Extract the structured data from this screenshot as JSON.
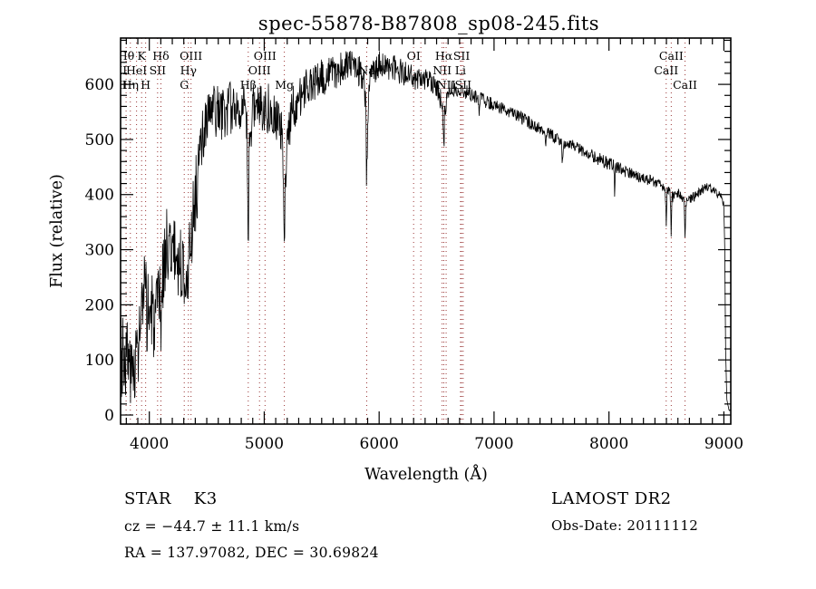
{
  "title": "spec-55878-B87808_sp08-245.fits",
  "footer": {
    "class_label": "STAR    K3",
    "cz_label": "cz = −44.7 ± 11.1 km/s",
    "radec_label": "RA = 137.97082, DEC =  30.69824",
    "survey": "LAMOST DR2",
    "obs_date": "Obs-Date: 20111112"
  },
  "chart_data": {
    "type": "line",
    "title": "spec-55878-B87808_sp08-245.fits",
    "xlabel": "Wavelength (Å)",
    "ylabel": "Flux (relative)",
    "xlim": [
      3750,
      9060
    ],
    "ylim": [
      0,
      600
    ],
    "x_ticks": [
      4000,
      5000,
      6000,
      7000,
      8000,
      9000
    ],
    "x_minor_step": 100,
    "y_ticks": [
      0,
      100,
      200,
      300,
      400,
      500,
      600
    ],
    "y_minor_step": 20,
    "grid": false,
    "legend": "none",
    "line_color": "#000000",
    "marker_color": "#993333",
    "spectral_lines": [
      {
        "label": "OII",
        "wavelength": 3727,
        "row": 2
      },
      {
        "label": "OII",
        "wavelength": 3729,
        "row": 3
      },
      {
        "label": "Hθ",
        "wavelength": 3798,
        "row": 1
      },
      {
        "label": "Hη",
        "wavelength": 3835,
        "row": 3
      },
      {
        "label": "HeI",
        "wavelength": 3889,
        "row": 2
      },
      {
        "label": "K",
        "wavelength": 3933,
        "row": 1
      },
      {
        "label": "H",
        "wavelength": 3968,
        "row": 3
      },
      {
        "label": "SII",
        "wavelength": 4072,
        "row": 2
      },
      {
        "label": "Hδ",
        "wavelength": 4101,
        "row": 1
      },
      {
        "label": "G",
        "wavelength": 4304,
        "row": 3
      },
      {
        "label": "Hγ",
        "wavelength": 4340,
        "row": 2
      },
      {
        "label": "OIII",
        "wavelength": 4363,
        "row": 1
      },
      {
        "label": "Hβ",
        "wavelength": 4861,
        "row": 3
      },
      {
        "label": "OIII",
        "wavelength": 4959,
        "row": 2
      },
      {
        "label": "OIII",
        "wavelength": 5007,
        "row": 1
      },
      {
        "label": "Mg",
        "wavelength": 5175,
        "row": 3
      },
      {
        "label": "Na",
        "wavelength": 5892,
        "row": 2
      },
      {
        "label": "OI",
        "wavelength": 6300,
        "row": 1
      },
      {
        "label": "",
        "wavelength": 6363,
        "row": 0
      },
      {
        "label": "NII",
        "wavelength": 6548,
        "row": 2
      },
      {
        "label": "Hα",
        "wavelength": 6563,
        "row": 1
      },
      {
        "label": "NII",
        "wavelength": 6583,
        "row": 3
      },
      {
        "label": "Li",
        "wavelength": 6708,
        "row": 2
      },
      {
        "label": "SII",
        "wavelength": 6717,
        "row": 1
      },
      {
        "label": "SII",
        "wavelength": 6731,
        "row": 3
      },
      {
        "label": "CaII",
        "wavelength": 8498,
        "row": 2
      },
      {
        "label": "CaII",
        "wavelength": 8542,
        "row": 1
      },
      {
        "label": "CaII",
        "wavelength": 8662,
        "row": 3
      }
    ],
    "envelope": [
      [
        3755,
        130,
        105
      ],
      [
        3800,
        110,
        90
      ],
      [
        3850,
        75,
        55
      ],
      [
        3900,
        120,
        75
      ],
      [
        3950,
        200,
        95
      ],
      [
        4000,
        190,
        85
      ],
      [
        4060,
        165,
        75
      ],
      [
        4100,
        230,
        80
      ],
      [
        4150,
        310,
        65
      ],
      [
        4200,
        305,
        60
      ],
      [
        4260,
        275,
        65
      ],
      [
        4310,
        260,
        70
      ],
      [
        4360,
        320,
        65
      ],
      [
        4420,
        430,
        70
      ],
      [
        4480,
        520,
        60
      ],
      [
        4550,
        555,
        50
      ],
      [
        4620,
        545,
        55
      ],
      [
        4700,
        555,
        50
      ],
      [
        4780,
        565,
        45
      ],
      [
        4830,
        545,
        50
      ],
      [
        4861,
        470,
        60
      ],
      [
        4900,
        560,
        45
      ],
      [
        4960,
        565,
        45
      ],
      [
        5010,
        560,
        50
      ],
      [
        5080,
        555,
        45
      ],
      [
        5140,
        520,
        50
      ],
      [
        5175,
        455,
        55
      ],
      [
        5230,
        545,
        45
      ],
      [
        5300,
        575,
        40
      ],
      [
        5400,
        600,
        38
      ],
      [
        5500,
        610,
        36
      ],
      [
        5600,
        622,
        32
      ],
      [
        5700,
        630,
        30
      ],
      [
        5800,
        638,
        28
      ],
      [
        5870,
        600,
        35
      ],
      [
        5892,
        540,
        40
      ],
      [
        5930,
        625,
        28
      ],
      [
        6000,
        635,
        26
      ],
      [
        6100,
        632,
        24
      ],
      [
        6200,
        622,
        24
      ],
      [
        6300,
        612,
        22
      ],
      [
        6400,
        608,
        20
      ],
      [
        6480,
        600,
        20
      ],
      [
        6563,
        555,
        25
      ],
      [
        6620,
        595,
        16
      ],
      [
        6700,
        590,
        14
      ],
      [
        6800,
        582,
        14
      ],
      [
        6900,
        572,
        13
      ],
      [
        7000,
        562,
        13
      ],
      [
        7100,
        552,
        12
      ],
      [
        7200,
        543,
        12
      ],
      [
        7300,
        532,
        12
      ],
      [
        7400,
        520,
        12
      ],
      [
        7500,
        508,
        13
      ],
      [
        7600,
        497,
        12
      ],
      [
        7700,
        486,
        12
      ],
      [
        7800,
        476,
        11
      ],
      [
        7900,
        466,
        12
      ],
      [
        8000,
        456,
        12
      ],
      [
        8100,
        446,
        12
      ],
      [
        8200,
        437,
        11
      ],
      [
        8300,
        429,
        10
      ],
      [
        8400,
        423,
        10
      ],
      [
        8450,
        420,
        9
      ],
      [
        8498,
        398,
        12
      ],
      [
        8520,
        408,
        9
      ],
      [
        8542,
        392,
        12
      ],
      [
        8580,
        405,
        9
      ],
      [
        8620,
        400,
        9
      ],
      [
        8662,
        385,
        12
      ],
      [
        8700,
        392,
        10
      ],
      [
        8750,
        398,
        9
      ],
      [
        8800,
        408,
        9
      ],
      [
        8850,
        415,
        9
      ],
      [
        8900,
        410,
        8
      ],
      [
        8950,
        400,
        8
      ],
      [
        8985,
        395,
        7
      ],
      [
        9000,
        380,
        6
      ],
      [
        9008,
        300,
        5
      ],
      [
        9015,
        120,
        4
      ],
      [
        9025,
        30,
        3
      ],
      [
        9040,
        12,
        2
      ],
      [
        9055,
        8,
        2
      ]
    ],
    "absorption_features": [
      [
        4101,
        60,
        6
      ],
      [
        4340,
        70,
        5
      ],
      [
        4861,
        150,
        4
      ],
      [
        5175,
        120,
        7
      ],
      [
        5892,
        110,
        4
      ],
      [
        6563,
        60,
        4
      ],
      [
        6870,
        30,
        2.5
      ],
      [
        7450,
        35,
        2.5
      ],
      [
        7594,
        45,
        4
      ],
      [
        8050,
        50,
        2.5
      ],
      [
        8498,
        45,
        3
      ],
      [
        8542,
        65,
        3
      ],
      [
        8662,
        65,
        3
      ]
    ],
    "noise_seed": 3,
    "n_points": 1500
  },
  "plot_geometry_note": "black spectrum over dark-red dotted line markers, white background"
}
